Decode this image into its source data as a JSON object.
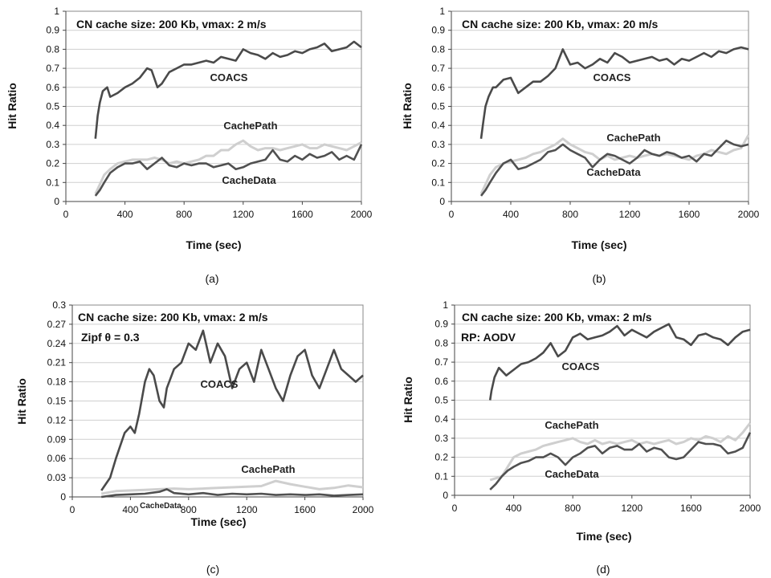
{
  "chart_data": [
    {
      "type": "line",
      "caption": "(a)",
      "xlabel": "Time (sec)",
      "ylabel": "Hit Ratio",
      "xlim": [
        0,
        2000
      ],
      "ylim": [
        0,
        1
      ],
      "xticks": [
        "0",
        "400",
        "800",
        "1200",
        "1600",
        "2000"
      ],
      "yticks": [
        "0",
        "0.1",
        "0.2",
        "0.3",
        "0.4",
        "0.5",
        "0.6",
        "0.7",
        "0.8",
        "0.9",
        "1"
      ],
      "grid": true,
      "annotations": [
        "CN cache size: 200 Kb, vmax: 2 m/s"
      ],
      "series": [
        {
          "name": "COACS",
          "color": "#4a4a4a",
          "x": [
            200,
            215,
            230,
            250,
            280,
            300,
            350,
            400,
            450,
            500,
            550,
            580,
            620,
            650,
            700,
            750,
            800,
            850,
            900,
            950,
            1000,
            1050,
            1100,
            1150,
            1200,
            1250,
            1300,
            1350,
            1400,
            1450,
            1500,
            1550,
            1600,
            1650,
            1700,
            1750,
            1800,
            1850,
            1900,
            1950,
            2000
          ],
          "values": [
            0.33,
            0.45,
            0.52,
            0.58,
            0.6,
            0.55,
            0.57,
            0.6,
            0.62,
            0.65,
            0.7,
            0.69,
            0.6,
            0.62,
            0.68,
            0.7,
            0.72,
            0.72,
            0.73,
            0.74,
            0.73,
            0.76,
            0.75,
            0.74,
            0.8,
            0.78,
            0.77,
            0.75,
            0.78,
            0.76,
            0.77,
            0.79,
            0.78,
            0.8,
            0.81,
            0.83,
            0.79,
            0.8,
            0.81,
            0.84,
            0.81
          ]
        },
        {
          "name": "CachePath",
          "color": "#cfcfcf",
          "x": [
            200,
            230,
            260,
            300,
            350,
            400,
            450,
            500,
            550,
            600,
            650,
            700,
            750,
            800,
            850,
            900,
            950,
            1000,
            1050,
            1100,
            1150,
            1200,
            1250,
            1300,
            1350,
            1400,
            1450,
            1500,
            1550,
            1600,
            1650,
            1700,
            1750,
            1800,
            1850,
            1900,
            1950,
            2000
          ],
          "values": [
            0.04,
            0.09,
            0.14,
            0.17,
            0.2,
            0.21,
            0.22,
            0.22,
            0.22,
            0.23,
            0.22,
            0.2,
            0.21,
            0.2,
            0.21,
            0.22,
            0.24,
            0.24,
            0.27,
            0.27,
            0.3,
            0.32,
            0.29,
            0.27,
            0.28,
            0.28,
            0.27,
            0.28,
            0.29,
            0.3,
            0.28,
            0.28,
            0.3,
            0.29,
            0.28,
            0.27,
            0.29,
            0.31
          ]
        },
        {
          "name": "CacheData",
          "color": "#505050",
          "x": [
            200,
            230,
            260,
            300,
            350,
            400,
            450,
            500,
            550,
            600,
            650,
            700,
            750,
            800,
            850,
            900,
            950,
            1000,
            1050,
            1100,
            1150,
            1200,
            1250,
            1300,
            1350,
            1400,
            1450,
            1500,
            1550,
            1600,
            1650,
            1700,
            1750,
            1800,
            1850,
            1900,
            1950,
            2000
          ],
          "values": [
            0.03,
            0.06,
            0.1,
            0.15,
            0.18,
            0.2,
            0.2,
            0.21,
            0.17,
            0.2,
            0.23,
            0.19,
            0.18,
            0.2,
            0.19,
            0.2,
            0.2,
            0.18,
            0.19,
            0.2,
            0.17,
            0.18,
            0.2,
            0.21,
            0.22,
            0.27,
            0.22,
            0.21,
            0.24,
            0.22,
            0.25,
            0.23,
            0.24,
            0.26,
            0.22,
            0.24,
            0.22,
            0.3
          ]
        }
      ]
    },
    {
      "type": "line",
      "caption": "(b)",
      "xlabel": "Time (sec)",
      "ylabel": "Hit Ratio",
      "xlim": [
        0,
        2000
      ],
      "ylim": [
        0,
        1
      ],
      "xticks": [
        "0",
        "400",
        "800",
        "1200",
        "1600",
        "2000"
      ],
      "yticks": [
        "0",
        "0.1",
        "0.2",
        "0.3",
        "0.4",
        "0.5",
        "0.6",
        "0.7",
        "0.8",
        "0.9",
        "1"
      ],
      "grid": true,
      "annotations": [
        "CN cache size: 200 Kb, vmax: 20 m/s"
      ],
      "series": [
        {
          "name": "COACS",
          "color": "#4a4a4a",
          "x": [
            200,
            215,
            230,
            250,
            280,
            300,
            350,
            400,
            450,
            500,
            550,
            600,
            650,
            700,
            750,
            800,
            850,
            900,
            950,
            1000,
            1050,
            1100,
            1150,
            1200,
            1250,
            1300,
            1350,
            1400,
            1450,
            1500,
            1550,
            1600,
            1650,
            1700,
            1750,
            1800,
            1850,
            1900,
            1950,
            2000
          ],
          "values": [
            0.33,
            0.42,
            0.5,
            0.55,
            0.6,
            0.6,
            0.64,
            0.65,
            0.57,
            0.6,
            0.63,
            0.63,
            0.66,
            0.7,
            0.8,
            0.72,
            0.73,
            0.7,
            0.72,
            0.75,
            0.73,
            0.78,
            0.76,
            0.73,
            0.74,
            0.75,
            0.76,
            0.74,
            0.75,
            0.72,
            0.75,
            0.74,
            0.76,
            0.78,
            0.76,
            0.79,
            0.78,
            0.8,
            0.81,
            0.8
          ]
        },
        {
          "name": "CachePath",
          "color": "#cfcfcf",
          "x": [
            200,
            230,
            260,
            300,
            350,
            400,
            450,
            500,
            550,
            600,
            650,
            700,
            750,
            800,
            850,
            900,
            950,
            1000,
            1050,
            1100,
            1150,
            1200,
            1250,
            1300,
            1350,
            1400,
            1450,
            1500,
            1550,
            1600,
            1650,
            1700,
            1750,
            1800,
            1850,
            1900,
            1950,
            2000
          ],
          "values": [
            0.04,
            0.09,
            0.14,
            0.18,
            0.2,
            0.21,
            0.22,
            0.23,
            0.25,
            0.26,
            0.28,
            0.3,
            0.33,
            0.3,
            0.28,
            0.26,
            0.25,
            0.22,
            0.24,
            0.22,
            0.23,
            0.24,
            0.23,
            0.24,
            0.25,
            0.24,
            0.25,
            0.24,
            0.23,
            0.22,
            0.24,
            0.25,
            0.27,
            0.26,
            0.25,
            0.27,
            0.28,
            0.35
          ]
        },
        {
          "name": "CacheData",
          "color": "#505050",
          "x": [
            200,
            230,
            260,
            300,
            350,
            400,
            450,
            500,
            550,
            600,
            650,
            700,
            750,
            800,
            850,
            900,
            950,
            1000,
            1050,
            1100,
            1150,
            1200,
            1250,
            1300,
            1350,
            1400,
            1450,
            1500,
            1550,
            1600,
            1650,
            1700,
            1750,
            1800,
            1850,
            1900,
            1950,
            2000
          ],
          "values": [
            0.03,
            0.06,
            0.1,
            0.15,
            0.2,
            0.22,
            0.17,
            0.18,
            0.2,
            0.22,
            0.26,
            0.27,
            0.3,
            0.27,
            0.25,
            0.23,
            0.18,
            0.22,
            0.25,
            0.24,
            0.22,
            0.2,
            0.23,
            0.27,
            0.25,
            0.24,
            0.26,
            0.25,
            0.23,
            0.24,
            0.21,
            0.25,
            0.24,
            0.28,
            0.32,
            0.3,
            0.29,
            0.3
          ]
        }
      ]
    },
    {
      "type": "line",
      "caption": "(c)",
      "xlabel": "Time (sec)",
      "ylabel": "Hit Ratio",
      "xlim": [
        0,
        2000
      ],
      "ylim": [
        0,
        0.3
      ],
      "xticks": [
        "0",
        "400",
        "800",
        "1200",
        "1600",
        "2000"
      ],
      "yticks": [
        "0",
        "0.03",
        "0.06",
        "0.09",
        "0.12",
        "0.15",
        "0.18",
        "0.21",
        "0.24",
        "0.27",
        "0.3"
      ],
      "grid": true,
      "annotations": [
        "CN cache size: 200 Kb, vmax: 2 m/s",
        "Zipf θ = 0.3"
      ],
      "series": [
        {
          "name": "COACS",
          "color": "#4a4a4a",
          "x": [
            200,
            230,
            260,
            300,
            330,
            360,
            400,
            430,
            460,
            500,
            530,
            560,
            600,
            630,
            650,
            700,
            750,
            800,
            850,
            900,
            950,
            1000,
            1050,
            1100,
            1150,
            1200,
            1250,
            1300,
            1350,
            1400,
            1450,
            1500,
            1550,
            1600,
            1650,
            1700,
            1750,
            1800,
            1850,
            1900,
            1950,
            2000
          ],
          "values": [
            0.01,
            0.02,
            0.03,
            0.06,
            0.08,
            0.1,
            0.11,
            0.1,
            0.13,
            0.18,
            0.2,
            0.19,
            0.15,
            0.14,
            0.17,
            0.2,
            0.21,
            0.24,
            0.23,
            0.26,
            0.21,
            0.24,
            0.22,
            0.17,
            0.2,
            0.21,
            0.18,
            0.23,
            0.2,
            0.17,
            0.15,
            0.19,
            0.22,
            0.23,
            0.19,
            0.17,
            0.2,
            0.23,
            0.2,
            0.19,
            0.18,
            0.19
          ]
        },
        {
          "name": "CachePath",
          "color": "#cfcfcf",
          "x": [
            200,
            300,
            400,
            500,
            600,
            700,
            800,
            900,
            1000,
            1100,
            1200,
            1300,
            1400,
            1500,
            1600,
            1700,
            1800,
            1900,
            2000
          ],
          "values": [
            0.005,
            0.009,
            0.01,
            0.011,
            0.012,
            0.013,
            0.012,
            0.013,
            0.014,
            0.015,
            0.016,
            0.017,
            0.025,
            0.02,
            0.016,
            0.012,
            0.014,
            0.018,
            0.015
          ]
        },
        {
          "name": "CacheData",
          "color": "#505050",
          "x": [
            200,
            300,
            400,
            500,
            600,
            650,
            700,
            800,
            900,
            1000,
            1100,
            1200,
            1300,
            1400,
            1500,
            1600,
            1700,
            1800,
            1900,
            2000
          ],
          "values": [
            0.0,
            0.003,
            0.004,
            0.005,
            0.008,
            0.012,
            0.006,
            0.004,
            0.006,
            0.003,
            0.005,
            0.004,
            0.005,
            0.003,
            0.004,
            0.003,
            0.004,
            0.002,
            0.003,
            0.004
          ]
        }
      ]
    },
    {
      "type": "line",
      "caption": "(d)",
      "xlabel": "Time (sec)",
      "ylabel": "Hit Ratio",
      "xlim": [
        0,
        2000
      ],
      "ylim": [
        0,
        1
      ],
      "xticks": [
        "0",
        "400",
        "800",
        "1200",
        "1600",
        "2000"
      ],
      "yticks": [
        "0",
        "0.1",
        "0.2",
        "0.3",
        "0.4",
        "0.5",
        "0.6",
        "0.7",
        "0.8",
        "0.9",
        "1"
      ],
      "grid": true,
      "annotations": [
        "CN cache size: 200 Kb, vmax: 2 m/s",
        "RP: AODV"
      ],
      "series": [
        {
          "name": "COACS",
          "color": "#4a4a4a",
          "x": [
            240,
            250,
            270,
            300,
            350,
            400,
            450,
            500,
            550,
            600,
            650,
            700,
            750,
            800,
            850,
            900,
            950,
            1000,
            1050,
            1100,
            1150,
            1200,
            1250,
            1300,
            1350,
            1400,
            1450,
            1500,
            1550,
            1600,
            1650,
            1700,
            1750,
            1800,
            1850,
            1900,
            1950,
            2000
          ],
          "values": [
            0.5,
            0.55,
            0.62,
            0.67,
            0.63,
            0.66,
            0.69,
            0.7,
            0.72,
            0.75,
            0.8,
            0.73,
            0.76,
            0.83,
            0.85,
            0.82,
            0.83,
            0.84,
            0.86,
            0.89,
            0.84,
            0.87,
            0.85,
            0.83,
            0.86,
            0.88,
            0.9,
            0.83,
            0.82,
            0.79,
            0.84,
            0.85,
            0.83,
            0.82,
            0.79,
            0.83,
            0.86,
            0.87
          ]
        },
        {
          "name": "CachePath",
          "color": "#cfcfcf",
          "x": [
            240,
            280,
            320,
            360,
            400,
            450,
            500,
            550,
            600,
            650,
            700,
            750,
            800,
            850,
            900,
            950,
            1000,
            1050,
            1100,
            1150,
            1200,
            1250,
            1300,
            1350,
            1400,
            1450,
            1500,
            1550,
            1600,
            1650,
            1700,
            1750,
            1800,
            1850,
            1900,
            1950,
            2000
          ],
          "values": [
            0.08,
            0.09,
            0.1,
            0.15,
            0.2,
            0.22,
            0.23,
            0.24,
            0.26,
            0.27,
            0.28,
            0.29,
            0.3,
            0.28,
            0.27,
            0.29,
            0.27,
            0.28,
            0.27,
            0.28,
            0.29,
            0.27,
            0.28,
            0.27,
            0.28,
            0.29,
            0.27,
            0.28,
            0.3,
            0.29,
            0.31,
            0.3,
            0.28,
            0.31,
            0.29,
            0.33,
            0.38
          ]
        },
        {
          "name": "CacheData",
          "color": "#505050",
          "x": [
            240,
            280,
            320,
            360,
            400,
            450,
            500,
            550,
            600,
            650,
            700,
            750,
            800,
            850,
            900,
            950,
            1000,
            1050,
            1100,
            1150,
            1200,
            1250,
            1300,
            1350,
            1400,
            1450,
            1500,
            1550,
            1600,
            1650,
            1700,
            1750,
            1800,
            1850,
            1900,
            1950,
            2000
          ],
          "values": [
            0.03,
            0.06,
            0.1,
            0.13,
            0.15,
            0.17,
            0.18,
            0.2,
            0.2,
            0.22,
            0.2,
            0.16,
            0.2,
            0.22,
            0.25,
            0.26,
            0.22,
            0.25,
            0.26,
            0.24,
            0.24,
            0.27,
            0.23,
            0.25,
            0.24,
            0.2,
            0.19,
            0.2,
            0.24,
            0.28,
            0.27,
            0.27,
            0.26,
            0.22,
            0.23,
            0.25,
            0.33
          ]
        }
      ]
    }
  ]
}
